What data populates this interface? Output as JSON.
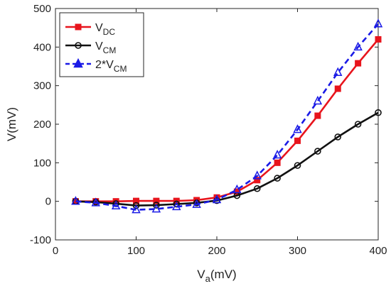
{
  "chart_data": {
    "type": "line",
    "xlabel": "V",
    "xlabel_sub": "a",
    "xlabel_unit": "(mV)",
    "ylabel": "V(mV)",
    "xlim": [
      0,
      400
    ],
    "ylim": [
      -100,
      500
    ],
    "xticks": [
      0,
      100,
      200,
      300,
      400
    ],
    "yticks": [
      -100,
      0,
      100,
      200,
      300,
      400,
      500
    ],
    "grid": false,
    "legend_position": "top-left",
    "series": [
      {
        "name": "V",
        "name_sub": "DC",
        "color": "#e8141c",
        "marker": "square",
        "dashed": false,
        "x": [
          25,
          50,
          75,
          100,
          125,
          150,
          175,
          200,
          225,
          250,
          275,
          300,
          325,
          350,
          375,
          400
        ],
        "y": [
          0,
          0,
          0,
          1,
          1,
          1,
          3,
          10,
          25,
          55,
          100,
          157,
          222,
          292,
          358,
          420
        ]
      },
      {
        "name": "V",
        "name_sub": "CM",
        "color": "#111111",
        "marker": "circle",
        "dashed": false,
        "x": [
          25,
          50,
          75,
          100,
          125,
          150,
          175,
          200,
          225,
          250,
          275,
          300,
          325,
          350,
          375,
          400
        ],
        "y": [
          0,
          -2,
          -6,
          -11,
          -10,
          -7,
          -4,
          2,
          15,
          33,
          60,
          93,
          130,
          167,
          200,
          230
        ]
      },
      {
        "name": "2*V",
        "name_sub": "CM",
        "color": "#1a1ae6",
        "marker": "triangle",
        "dashed": true,
        "x": [
          25,
          50,
          75,
          100,
          125,
          150,
          175,
          200,
          225,
          250,
          275,
          300,
          325,
          350,
          375,
          400
        ],
        "y": [
          0,
          -4,
          -12,
          -22,
          -20,
          -14,
          -8,
          4,
          30,
          66,
          120,
          186,
          260,
          334,
          400,
          460
        ]
      }
    ]
  }
}
